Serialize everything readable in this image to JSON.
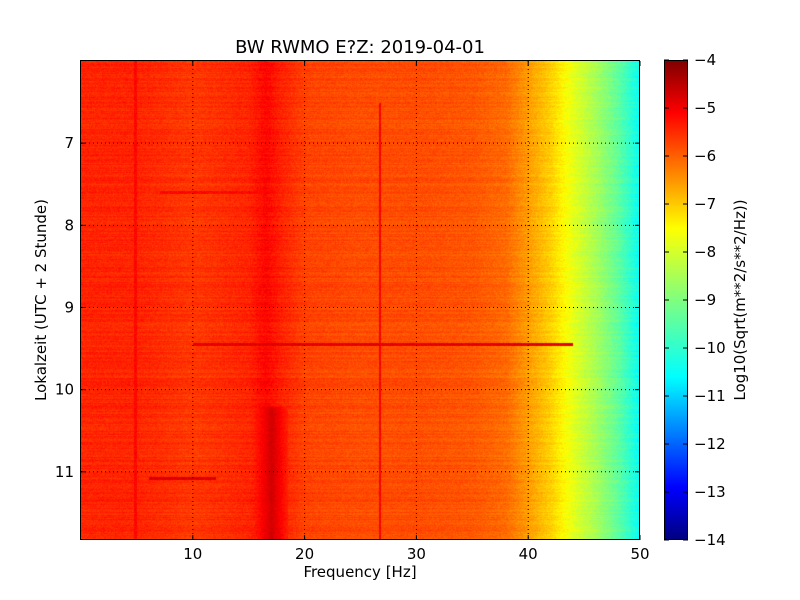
{
  "chart_data": {
    "type": "heatmap",
    "title": "BW RWMO E?Z: 2019-04-01",
    "xlabel": "Frequency [Hz]",
    "ylabel": "Lokalzeit (UTC + 2 Stunde)",
    "xlim": [
      0,
      50
    ],
    "ylim": [
      6,
      11.83
    ],
    "y_inverted": true,
    "x_ticks": [
      10,
      20,
      30,
      40,
      50
    ],
    "x_tick_labels": [
      "10",
      "20",
      "30",
      "40",
      "50"
    ],
    "y_ticks": [
      7,
      8,
      9,
      10,
      11
    ],
    "y_tick_labels": [
      "7",
      "8",
      "9",
      "10",
      "11"
    ],
    "grid": true,
    "colorbar": {
      "label": "Log10(Sqrt(m**2/s**2/Hz))",
      "range": [
        -14,
        -4
      ],
      "ticks": [
        -4,
        -5,
        -6,
        -7,
        -8,
        -9,
        -10,
        -11,
        -12,
        -13,
        -14
      ],
      "tick_labels": [
        "−4",
        "−5",
        "−6",
        "−7",
        "−8",
        "−9",
        "−10",
        "−11",
        "−12",
        "−13",
        "−14"
      ],
      "colormap": "jet"
    },
    "spectrum_profile_hz": [
      0,
      5,
      10,
      15,
      16.5,
      18,
      20,
      25,
      30,
      35,
      38,
      40,
      42,
      44,
      46,
      48,
      50
    ],
    "spectrum_profile_value": [
      -5.6,
      -5.6,
      -5.8,
      -5.6,
      -5.3,
      -5.6,
      -5.9,
      -6.0,
      -6.0,
      -6.1,
      -6.3,
      -6.8,
      -7.3,
      -8.0,
      -8.6,
      -9.3,
      -10.2
    ],
    "features": [
      {
        "label": "strong band",
        "x_range_hz": [
          15.5,
          18.5
        ],
        "time_range": [
          10.2,
          11.83
        ],
        "value": -4.8
      },
      {
        "label": "line",
        "x_hz": 26.7,
        "time_range": [
          6.5,
          11.83
        ],
        "value": -5.2
      },
      {
        "label": "line",
        "x_hz": 4.8,
        "time_range": [
          6.0,
          11.83
        ],
        "value": -5.3
      },
      {
        "label": "horizontal burst",
        "time": 9.45,
        "x_range_hz": [
          10,
          44
        ],
        "value": -5.0
      },
      {
        "label": "horizontal burst",
        "time": 11.07,
        "x_range_hz": [
          6,
          12
        ],
        "value": -4.9
      },
      {
        "label": "horizontal burst",
        "time": 7.6,
        "x_range_hz": [
          7,
          16
        ],
        "value": -5.3
      }
    ],
    "colors": {
      "jet": [
        "#00007f",
        "#0000ff",
        "#007fff",
        "#00ffff",
        "#7fff7f",
        "#ffff00",
        "#ff7f00",
        "#ff0000",
        "#7f0000"
      ]
    }
  }
}
